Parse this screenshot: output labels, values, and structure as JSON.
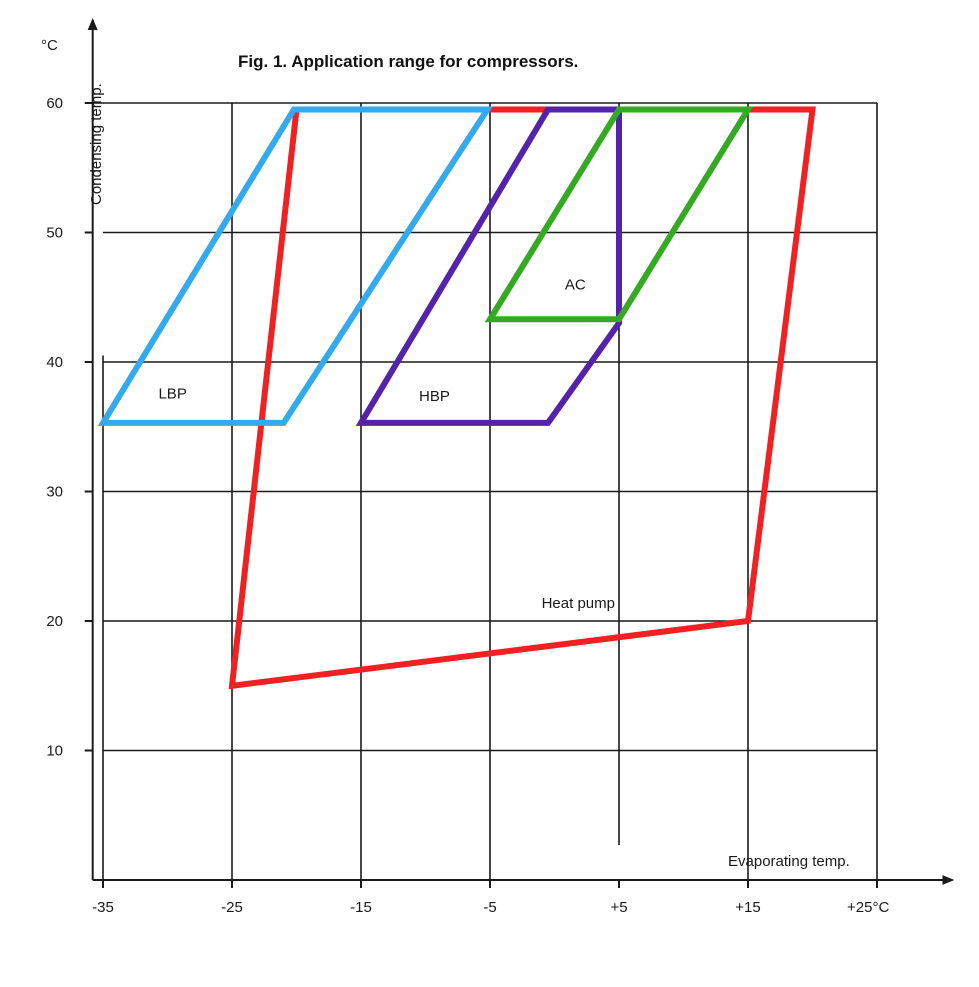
{
  "chart_data": {
    "type": "line",
    "title": "Fig. 1. Application range for compressors.",
    "xlabel": "Evaporating temp.",
    "ylabel": "Condensing temp.",
    "y_unit": "°C",
    "x_ticks": [
      {
        "value": -35,
        "label": "-35"
      },
      {
        "value": -25,
        "label": "-25"
      },
      {
        "value": -15,
        "label": "-15"
      },
      {
        "value": -5,
        "label": "-5"
      },
      {
        "value": 5,
        "label": "+5"
      },
      {
        "value": 15,
        "label": "+15"
      },
      {
        "value": 25,
        "label": "+25°C"
      }
    ],
    "y_ticks": [
      {
        "value": 10,
        "label": "10"
      },
      {
        "value": 20,
        "label": "20"
      },
      {
        "value": 30,
        "label": "30"
      },
      {
        "value": 40,
        "label": "40"
      },
      {
        "value": 50,
        "label": "50"
      },
      {
        "value": 60,
        "label": "60"
      }
    ],
    "xlim": [
      -37,
      27
    ],
    "ylim": [
      0,
      61
    ],
    "grid": true,
    "series": [
      {
        "name": "Heat pump",
        "color": "#ee2222",
        "points": [
          [
            -25,
            15
          ],
          [
            -20,
            59.5
          ],
          [
            20,
            59.5
          ],
          [
            15,
            20
          ],
          [
            -25,
            15
          ]
        ]
      },
      {
        "name": "LBP",
        "color": "#33aaee",
        "points": [
          [
            -35,
            35.3
          ],
          [
            -20.2,
            59.5
          ],
          [
            -5.2,
            59.5
          ],
          [
            -21,
            35.3
          ],
          [
            -35,
            35.3
          ]
        ]
      },
      {
        "name": "HBP",
        "color": "#5522aa",
        "points": [
          [
            -15,
            35.3
          ],
          [
            -0.5,
            59.5
          ],
          [
            5,
            59.5
          ],
          [
            5,
            43
          ],
          [
            -0.5,
            35.3
          ],
          [
            -15,
            35.3
          ]
        ]
      },
      {
        "name": "AC",
        "color": "#33aa22",
        "points": [
          [
            -5,
            43.3
          ],
          [
            5,
            59.5
          ],
          [
            15,
            59.5
          ],
          [
            5,
            43.3
          ],
          [
            -5,
            43.3
          ]
        ]
      }
    ],
    "annotations": [
      {
        "text": "LBP",
        "x": -30.7,
        "y": 37.2
      },
      {
        "text": "HBP",
        "x": -10.5,
        "y": 37.0
      },
      {
        "text": "AC",
        "x": 0.8,
        "y": 45.6
      },
      {
        "text": "Heat pump",
        "x": -1,
        "y": 21.0
      }
    ]
  }
}
